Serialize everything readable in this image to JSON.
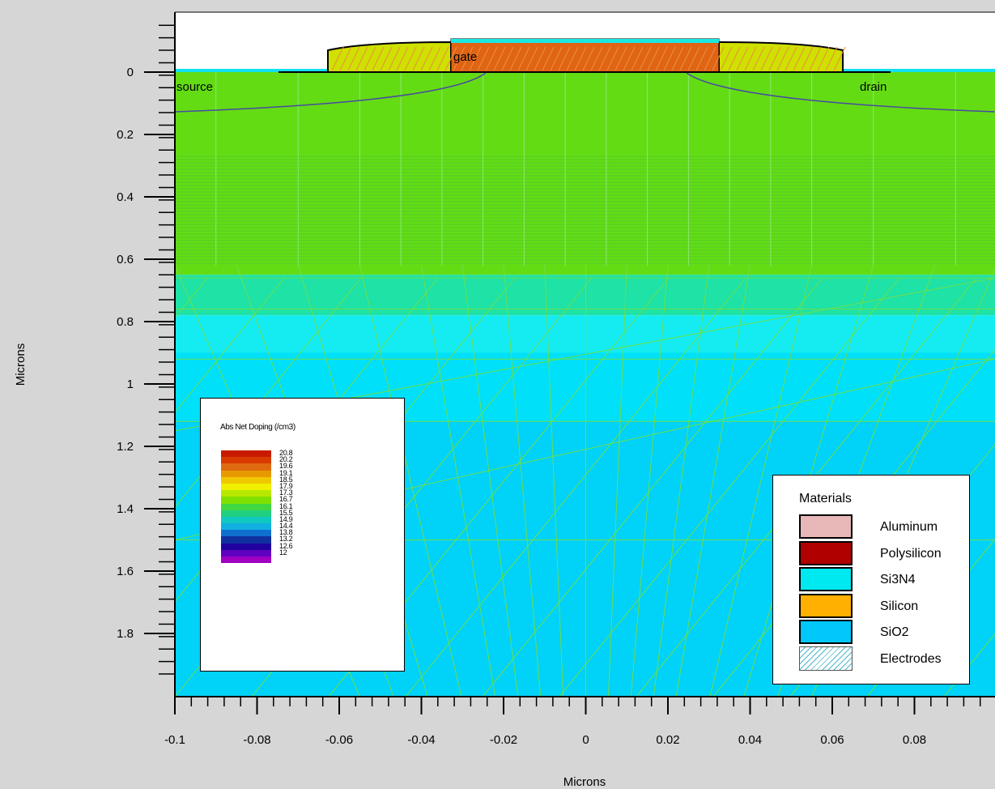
{
  "chart_data": {
    "type": "heatmap",
    "xlabel": "Microns",
    "ylabel": "Microns",
    "xlim": [
      -0.1,
      0.1
    ],
    "ylim": [
      -0.19,
      2.0
    ],
    "x_ticks": [
      "-0.1",
      "-0.08",
      "-0.06",
      "-0.04",
      "-0.02",
      "0",
      "0.02",
      "0.04",
      "0.06",
      "0.08"
    ],
    "x_tick_values": [
      -0.1,
      -0.08,
      -0.06,
      -0.04,
      -0.02,
      0,
      0.02,
      0.04,
      0.06,
      0.08
    ],
    "y_ticks": [
      "0",
      "0.2",
      "0.4",
      "0.6",
      "0.8",
      "1",
      "1.2",
      "1.4",
      "1.6",
      "1.8"
    ],
    "y_tick_values": [
      0,
      0.2,
      0.4,
      0.6,
      0.8,
      1.0,
      1.2,
      1.4,
      1.6,
      1.8
    ],
    "y_inverted": true,
    "grid": false,
    "region_labels": {
      "source": "source",
      "gate": "gate",
      "drain": "drain"
    },
    "colorbar": {
      "title": "Abs Net Doping (/cm3)",
      "values": [
        "20.8",
        "20.2",
        "19.6",
        "19.1",
        "18.5",
        "17.9",
        "17.3",
        "16.7",
        "16.1",
        "15.5",
        "14.9",
        "14.4",
        "13.8",
        "13.2",
        "12.6",
        "12"
      ],
      "colors": [
        "#c81a00",
        "#d83a00",
        "#e06a10",
        "#e69a00",
        "#f0c800",
        "#f0f000",
        "#b8e800",
        "#80e000",
        "#40d840",
        "#20d080",
        "#10c8c0",
        "#10b0e0",
        "#1070d0",
        "#1030a0",
        "#2000a0",
        "#6000c0",
        "#a000c0"
      ],
      "position": "bottom-left"
    },
    "materials": {
      "title": "Materials",
      "items": [
        {
          "name": "Aluminum",
          "color": "#e8b8b8"
        },
        {
          "name": "Polysilicon",
          "color": "#b00000"
        },
        {
          "name": "Si3N4",
          "color": "#00e8f0"
        },
        {
          "name": "Silicon",
          "color": "#ffb000"
        },
        {
          "name": "SiO2",
          "color": "#00c8f8"
        },
        {
          "name": "Electrodes",
          "color": "#ffffff",
          "hatched": true
        }
      ],
      "position": "bottom-right"
    },
    "doping_bands_depth": [
      {
        "from": 0.0,
        "to": 0.65,
        "color": "#64dc14"
      },
      {
        "from": 0.65,
        "to": 0.78,
        "color": "#1ee2a6"
      },
      {
        "from": 0.78,
        "to": 0.9,
        "color": "#14ecf2"
      },
      {
        "from": 0.9,
        "to": 1.12,
        "color": "#00e0f8"
      },
      {
        "from": 1.12,
        "to": 2.0,
        "color": "#00d2f8"
      }
    ]
  }
}
